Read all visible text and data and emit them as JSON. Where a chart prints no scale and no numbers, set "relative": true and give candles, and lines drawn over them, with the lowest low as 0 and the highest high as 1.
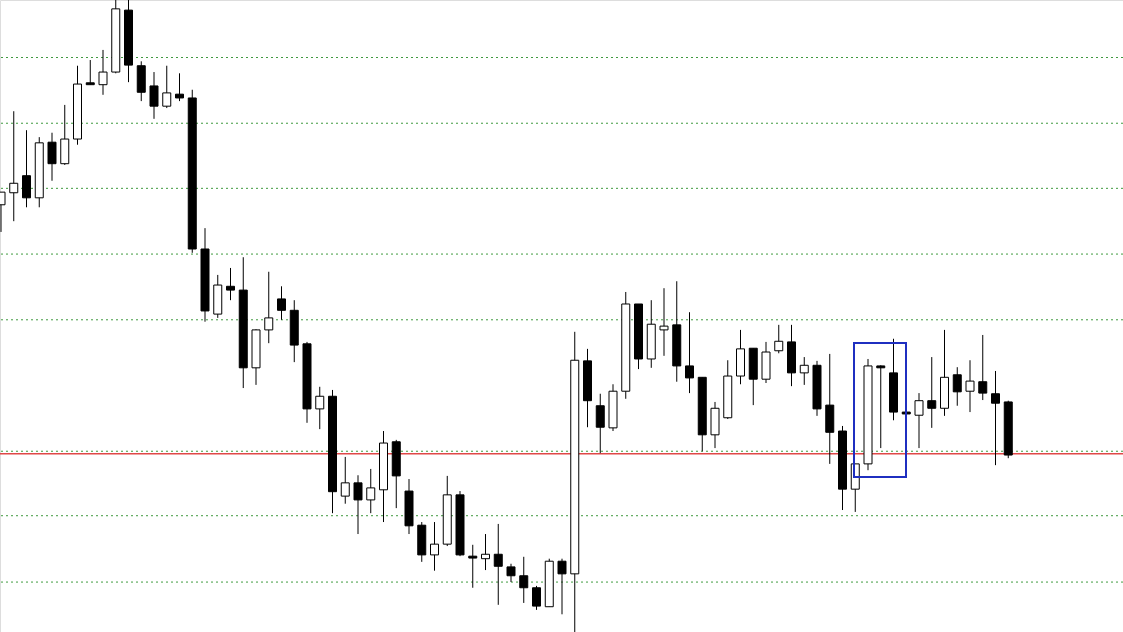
{
  "chart_data": {
    "type": "candlestick",
    "relative": true,
    "color": "#000000",
    "categories": [
      null,
      null,
      null,
      null,
      null,
      null,
      null,
      null,
      null,
      null,
      null,
      null,
      null,
      null,
      null,
      null,
      null,
      null,
      null,
      null,
      null,
      null,
      null,
      null,
      null,
      null,
      null,
      null,
      null,
      null,
      null,
      null,
      null,
      null,
      null,
      null,
      null,
      null,
      null,
      null,
      null,
      null,
      null,
      null,
      null,
      null,
      null,
      null,
      null,
      null,
      null,
      null,
      null,
      null,
      null,
      null,
      null,
      null,
      null,
      null,
      null,
      null,
      null,
      null,
      null,
      null,
      null,
      null,
      null,
      null,
      null,
      null,
      null,
      null,
      null,
      null,
      null,
      null,
      null,
      null
    ],
    "ohlc": [
      [
        0.676,
        0.696,
        0.633,
        0.696
      ],
      [
        0.695,
        0.824,
        0.65,
        0.71
      ],
      [
        0.722,
        0.794,
        0.672,
        0.687
      ],
      [
        0.687,
        0.783,
        0.672,
        0.774
      ],
      [
        0.775,
        0.79,
        0.714,
        0.741
      ],
      [
        0.741,
        0.834,
        0.739,
        0.78
      ],
      [
        0.78,
        0.896,
        0.771,
        0.867
      ],
      [
        0.869,
        0.905,
        0.866,
        0.866
      ],
      [
        0.866,
        0.921,
        0.85,
        0.886
      ],
      [
        0.886,
        1,
        0.884,
        0.986
      ],
      [
        0.984,
        1,
        0.87,
        0.897
      ],
      [
        0.896,
        0.903,
        0.84,
        0.854
      ],
      [
        0.864,
        0.886,
        0.812,
        0.832
      ],
      [
        0.832,
        0.896,
        0.829,
        0.853
      ],
      [
        0.851,
        0.884,
        0.84,
        0.845
      ],
      [
        0.845,
        0.858,
        0.6,
        0.606
      ],
      [
        0.606,
        0.639,
        0.491,
        0.508
      ],
      [
        0.503,
        0.565,
        0.497,
        0.549
      ],
      [
        0.547,
        0.576,
        0.525,
        0.541
      ],
      [
        0.541,
        0.593,
        0.386,
        0.418
      ],
      [
        0.418,
        0.479,
        0.391,
        0.478
      ],
      [
        0.478,
        0.57,
        0.457,
        0.497
      ],
      [
        0.527,
        0.547,
        0.494,
        0.509
      ],
      [
        0.509,
        0.525,
        0.427,
        0.454
      ],
      [
        0.456,
        0.459,
        0.331,
        0.353
      ],
      [
        0.353,
        0.388,
        0.321,
        0.373
      ],
      [
        0.373,
        0.383,
        0.188,
        0.222
      ],
      [
        0.215,
        0.277,
        0.203,
        0.236
      ],
      [
        0.236,
        0.248,
        0.155,
        0.209
      ],
      [
        0.209,
        0.258,
        0.188,
        0.228
      ],
      [
        0.225,
        0.318,
        0.174,
        0.299
      ],
      [
        0.301,
        0.304,
        0.196,
        0.247
      ],
      [
        0.223,
        0.242,
        0.155,
        0.168
      ],
      [
        0.169,
        0.174,
        0.111,
        0.122
      ],
      [
        0.122,
        0.174,
        0.097,
        0.139
      ],
      [
        0.139,
        0.247,
        0.136,
        0.217
      ],
      [
        0.217,
        0.223,
        0.12,
        0.122
      ],
      [
        0.12,
        0.138,
        0.07,
        0.117
      ],
      [
        0.116,
        0.155,
        0.098,
        0.123
      ],
      [
        0.123,
        0.171,
        0.043,
        0.104
      ],
      [
        0.103,
        0.108,
        0.079,
        0.089
      ],
      [
        0.089,
        0.119,
        0.046,
        0.07
      ],
      [
        0.07,
        0.073,
        0.035,
        0.041
      ],
      [
        0.04,
        0.116,
        0.04,
        0.112
      ],
      [
        0.112,
        0.116,
        0.028,
        0.092
      ],
      [
        0.092,
        0.475,
        0,
        0.43
      ],
      [
        0.429,
        0.448,
        0.324,
        0.366
      ],
      [
        0.358,
        0.377,
        0.283,
        0.324
      ],
      [
        0.323,
        0.392,
        0.318,
        0.381
      ],
      [
        0.381,
        0.538,
        0.369,
        0.519
      ],
      [
        0.519,
        0.519,
        0.416,
        0.432
      ],
      [
        0.432,
        0.525,
        0.418,
        0.487
      ],
      [
        0.478,
        0.544,
        0.437,
        0.484
      ],
      [
        0.486,
        0.555,
        0.396,
        0.421
      ],
      [
        0.421,
        0.506,
        0.378,
        0.402
      ],
      [
        0.403,
        0.403,
        0.286,
        0.312
      ],
      [
        0.312,
        0.364,
        0.291,
        0.354
      ],
      [
        0.339,
        0.43,
        0.337,
        0.405
      ],
      [
        0.405,
        0.478,
        0.392,
        0.448
      ],
      [
        0.449,
        0.449,
        0.359,
        0.4
      ],
      [
        0.4,
        0.459,
        0.394,
        0.443
      ],
      [
        0.445,
        0.486,
        0.441,
        0.46
      ],
      [
        0.459,
        0.486,
        0.389,
        0.41
      ],
      [
        0.41,
        0.435,
        0.391,
        0.422
      ],
      [
        0.422,
        0.429,
        0.342,
        0.353
      ],
      [
        0.359,
        0.44,
        0.266,
        0.316
      ],
      [
        0.318,
        0.326,
        0.193,
        0.226
      ],
      [
        0.226,
        0.266,
        0.19,
        0.266
      ],
      [
        0.266,
        0.432,
        0.256,
        0.421
      ],
      [
        0.421,
        0.422,
        0.291,
        0.418
      ],
      [
        0.41,
        0.464,
        0.335,
        0.348
      ],
      [
        0.348,
        0.348,
        0.345,
        0.345
      ],
      [
        0.343,
        0.378,
        0.291,
        0.366
      ],
      [
        0.366,
        0.435,
        0.323,
        0.354
      ],
      [
        0.354,
        0.478,
        0.342,
        0.403
      ],
      [
        0.407,
        0.419,
        0.358,
        0.38
      ],
      [
        0.381,
        0.43,
        0.348,
        0.397
      ],
      [
        0.396,
        0.47,
        0.367,
        0.378
      ],
      [
        0.377,
        0.413,
        0.264,
        0.362
      ],
      [
        0.364,
        0.366,
        0.275,
        0.28
      ]
    ],
    "colors": [
      "#ffffff",
      "#ffffff",
      "#000000",
      "#ffffff",
      "#000000",
      "#ffffff",
      "#ffffff",
      "#000000",
      "#ffffff",
      "#ffffff",
      "#000000",
      "#000000",
      "#000000",
      "#ffffff",
      "#000000",
      "#000000",
      "#000000",
      "#ffffff",
      "#000000",
      "#000000",
      "#ffffff",
      "#ffffff",
      "#000000",
      "#000000",
      "#000000",
      "#ffffff",
      "#000000",
      "#ffffff",
      "#000000",
      "#ffffff",
      "#ffffff",
      "#000000",
      "#000000",
      "#000000",
      "#ffffff",
      "#ffffff",
      "#000000",
      "#000000",
      "#ffffff",
      "#000000",
      "#000000",
      "#000000",
      "#000000",
      "#ffffff",
      "#000000",
      "#ffffff",
      "#000000",
      "#000000",
      "#ffffff",
      "#ffffff",
      "#000000",
      "#ffffff",
      "#ffffff",
      "#000000",
      "#000000",
      "#000000",
      "#ffffff",
      "#ffffff",
      "#ffffff",
      "#000000",
      "#ffffff",
      "#ffffff",
      "#000000",
      "#ffffff",
      "#000000",
      "#000000",
      "#000000",
      "#ffffff",
      "#ffffff",
      "#000000",
      "#000000",
      "#000000",
      "#ffffff",
      "#000000",
      "#ffffff",
      "#000000",
      "#ffffff",
      "#000000",
      "#000000",
      "#000000"
    ],
    "ref_lines": [
      {
        "axis": "y",
        "value": 0.909,
        "color": "#3f9a3f",
        "line_style": "dotted"
      },
      {
        "axis": "y",
        "value": 0.805,
        "color": "#3f9a3f",
        "line_style": "dotted"
      },
      {
        "axis": "y",
        "value": 0.702,
        "color": "#3f9a3f",
        "line_style": "dotted"
      },
      {
        "axis": "y",
        "value": 0.598,
        "color": "#3f9a3f",
        "line_style": "dotted"
      },
      {
        "axis": "y",
        "value": 0.494,
        "color": "#3f9a3f",
        "line_style": "dotted"
      },
      {
        "axis": "y",
        "value": 0.286,
        "color": "#3f9a3f",
        "line_style": "dotted"
      },
      {
        "axis": "y",
        "value": 0.184,
        "color": "#3f9a3f",
        "line_style": "dotted"
      },
      {
        "axis": "y",
        "value": 0.079,
        "color": "#3f9a3f",
        "line_style": "dotted"
      },
      {
        "axis": "y",
        "value": 0.282,
        "color": "#e04848",
        "line_style": "solid"
      }
    ]
  }
}
